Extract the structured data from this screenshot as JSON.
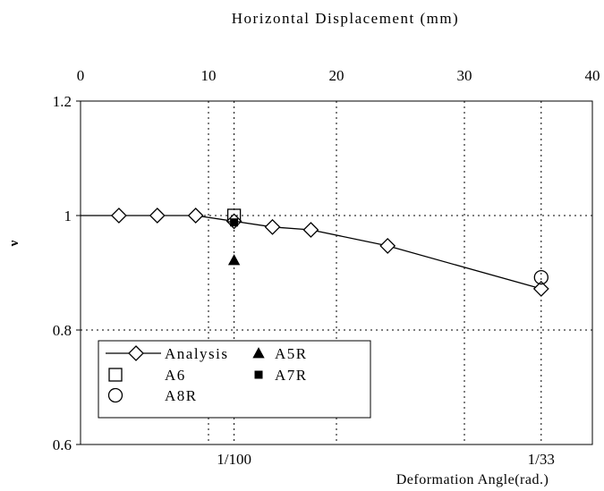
{
  "chart_data": {
    "type": "scatter",
    "top_axis": {
      "label": "Horizontal Displacement (mm)",
      "range": [
        0,
        40
      ],
      "ticks": [
        "0",
        "10",
        "20",
        "30",
        "40"
      ]
    },
    "y_axis": {
      "label": "ν",
      "range": [
        0.6,
        1.2
      ],
      "ticks": [
        "0.6",
        "0.8",
        "1",
        "1.2"
      ]
    },
    "bottom_axis": {
      "label": "Deformation Angle(rad.)",
      "tick_labels": [
        {
          "text": "1/100",
          "x": 12
        },
        {
          "text": "1/33",
          "x": 36
        }
      ]
    },
    "grid": true,
    "legend_position": "bottom-left",
    "series": [
      {
        "name": "Analysis",
        "marker": "diamond",
        "line": true,
        "points": [
          [
            0,
            1.0
          ],
          [
            3,
            1.0
          ],
          [
            6,
            1.0
          ],
          [
            9,
            1.0
          ],
          [
            12,
            0.99
          ],
          [
            15,
            0.98
          ],
          [
            18,
            0.975
          ],
          [
            24,
            0.947
          ],
          [
            36,
            0.872
          ]
        ]
      },
      {
        "name": "A6",
        "marker": "square-open",
        "line": false,
        "points": [
          [
            12,
            1.0
          ]
        ]
      },
      {
        "name": "A8R",
        "marker": "circle-open",
        "line": false,
        "points": [
          [
            36,
            0.892
          ]
        ]
      },
      {
        "name": "A5R",
        "marker": "triangle-filled",
        "line": false,
        "points": [
          [
            12,
            0.922
          ]
        ]
      },
      {
        "name": "A7R",
        "marker": "square-filled",
        "line": false,
        "points": [
          [
            12,
            0.988
          ]
        ]
      }
    ]
  }
}
